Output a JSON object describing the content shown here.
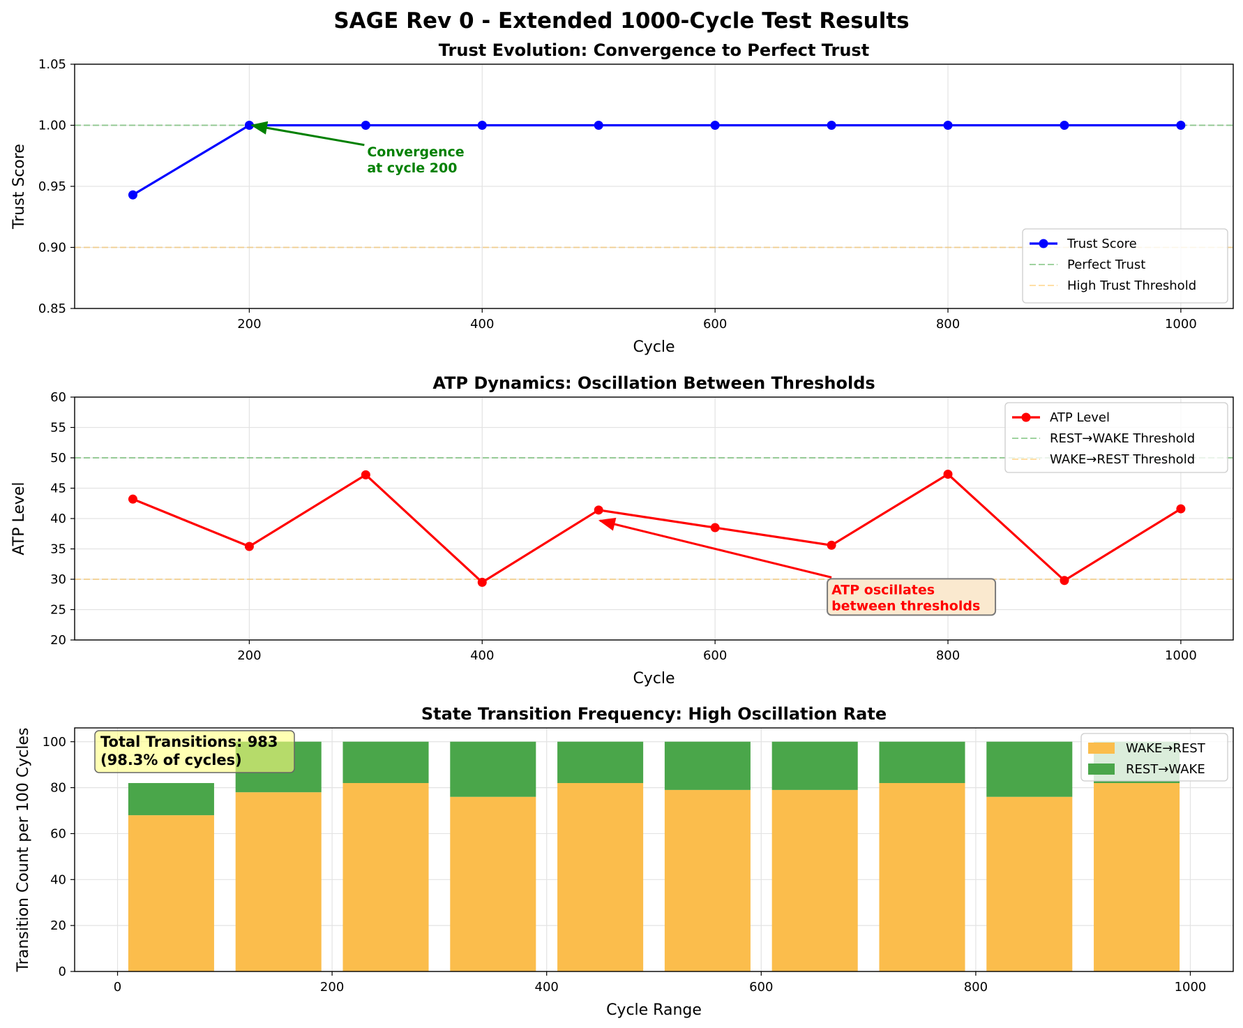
{
  "suptitle": "SAGE Rev 0 - Extended 1000-Cycle Test Results",
  "colors": {
    "trust": "#0000ff",
    "atp": "#ff0000",
    "green_line": "#2ca02c",
    "orange_line": "#ffa500",
    "wake_rest_bar": "#fbbd4c",
    "rest_wake_bar": "#4aa64a",
    "annotation_green": "#008000",
    "annotation_red": "#ff0000"
  },
  "chart_data": [
    {
      "type": "line",
      "title": "Trust Evolution: Convergence to Perfect Trust",
      "xlabel": "Cycle",
      "ylabel": "Trust Score",
      "xlim": [
        50,
        1045
      ],
      "ylim": [
        0.85,
        1.05
      ],
      "xticks": [
        200,
        400,
        600,
        800,
        1000
      ],
      "yticks": [
        "0.85",
        "0.90",
        "0.95",
        "1.00",
        "1.05"
      ],
      "grid": true,
      "legend_position": "bottom-right",
      "series": [
        {
          "name": "Trust Score",
          "x": [
            100,
            200,
            300,
            400,
            500,
            600,
            700,
            800,
            900,
            1000
          ],
          "y": [
            0.943,
            1.0,
            1.0,
            1.0,
            1.0,
            1.0,
            1.0,
            1.0,
            1.0,
            1.0
          ]
        }
      ],
      "reference_lines": [
        {
          "name": "Perfect Trust",
          "y": 1.0
        },
        {
          "name": "High Trust Threshold",
          "y": 0.9
        }
      ],
      "annotation": {
        "line1": "Convergence",
        "line2": "at cycle 200",
        "point": [
          200,
          1.0
        ],
        "text_at": [
          300,
          0.985
        ]
      }
    },
    {
      "type": "line",
      "title": "ATP Dynamics: Oscillation Between Thresholds",
      "xlabel": "Cycle",
      "ylabel": "ATP Level",
      "xlim": [
        50,
        1045
      ],
      "ylim": [
        20,
        60
      ],
      "xticks": [
        200,
        400,
        600,
        800,
        1000
      ],
      "yticks": [
        "20",
        "25",
        "30",
        "35",
        "40",
        "45",
        "50",
        "55",
        "60"
      ],
      "grid": true,
      "legend_position": "top-right",
      "series": [
        {
          "name": "ATP Level",
          "x": [
            100,
            200,
            300,
            400,
            500,
            600,
            700,
            800,
            900,
            1000
          ],
          "y": [
            43.2,
            35.4,
            47.2,
            29.5,
            41.4,
            38.5,
            35.6,
            47.3,
            29.8,
            41.6
          ]
        }
      ],
      "reference_lines": [
        {
          "name": "REST→WAKE Threshold",
          "y": 50
        },
        {
          "name": "WAKE→REST Threshold",
          "y": 30
        }
      ],
      "annotation": {
        "line1": "ATP oscillates",
        "line2": "between thresholds",
        "point": [
          500,
          40
        ],
        "text_at": [
          700,
          30.3
        ]
      }
    },
    {
      "type": "bar",
      "stacked": true,
      "title": "State Transition Frequency: High Oscillation Rate",
      "xlabel": "Cycle Range",
      "ylabel": "Transition Count per 100 Cycles",
      "xlim": [
        -40,
        1040
      ],
      "ylim": [
        0,
        106
      ],
      "xticks": [
        0,
        200,
        400,
        600,
        800,
        1000
      ],
      "yticks": [
        "0",
        "20",
        "40",
        "60",
        "80",
        "100"
      ],
      "grid": true,
      "legend_position": "top-right",
      "bar_centers": [
        50,
        150,
        250,
        350,
        450,
        550,
        650,
        750,
        850,
        950
      ],
      "bar_width": 80,
      "series": [
        {
          "name": "WAKE→REST",
          "values": [
            68,
            78,
            82,
            76,
            82,
            79,
            79,
            82,
            76,
            82
          ]
        },
        {
          "name": "REST→WAKE",
          "values": [
            14,
            22,
            18,
            24,
            18,
            21,
            21,
            18,
            24,
            18
          ]
        }
      ],
      "summary_box": {
        "line1": "Total Transitions: 983",
        "line2": "(98.3% of cycles)"
      }
    }
  ]
}
